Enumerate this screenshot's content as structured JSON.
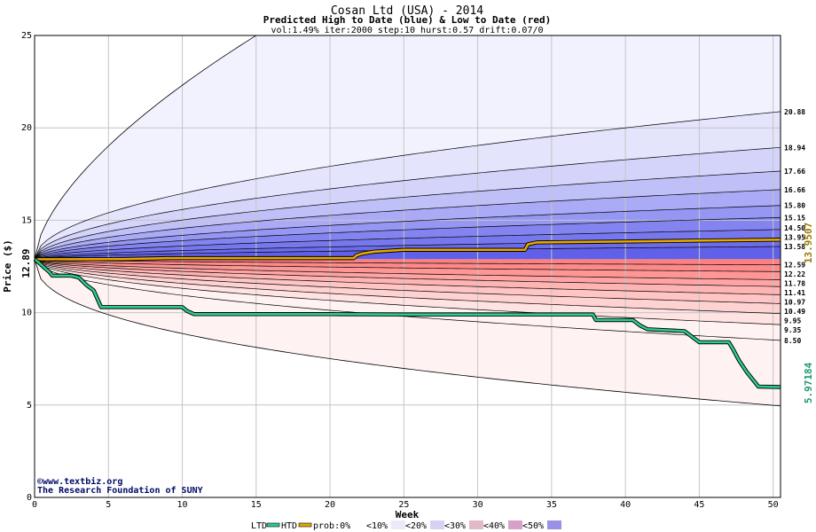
{
  "chart_data": {
    "type": "area",
    "title": "Cosan Ltd (USA) - 2014",
    "subtitle": "Predicted High to Date (blue) &  Low to Date (red)",
    "params": "vol:1.49% iter:2000 step:10 hurst:0.57 drift:0.07/0",
    "xlabel": "Week",
    "ylabel": "Price ($)",
    "xlim": [
      0,
      50.5
    ],
    "ylim": [
      0,
      25
    ],
    "x_ticks": [
      0,
      5,
      10,
      15,
      20,
      25,
      30,
      35,
      40,
      45,
      50
    ],
    "y_ticks": [
      0,
      5,
      10,
      15,
      20,
      25
    ],
    "grid": true,
    "start_price": 12.89,
    "start_price_label": "12.89",
    "upper_levels": [
      13.58,
      13.95,
      14.5,
      15.15,
      15.8,
      16.66,
      17.66,
      18.94,
      20.88
    ],
    "upper_labels": [
      "13.58",
      "13.95",
      "14.50",
      "15.15",
      "15.80",
      "16.66",
      "17.66",
      "18.94",
      "20.88"
    ],
    "lower_levels": [
      12.59,
      12.22,
      11.78,
      11.41,
      10.97,
      10.49,
      9.95,
      9.35,
      8.5
    ],
    "lower_labels": [
      "12.59",
      "12.22",
      "11.78",
      "11.41",
      "10.97",
      "10.49",
      "9.95",
      "9.35",
      "8.50"
    ],
    "outer_upper_week15": 25.0,
    "outer_lower_end": 4.95,
    "htd_series": {
      "name": "HTD",
      "color": "#e6a800",
      "final_value": 13.9507,
      "final_label": "13.9507",
      "points": [
        [
          0,
          12.89
        ],
        [
          2,
          12.89
        ],
        [
          6,
          12.9
        ],
        [
          9,
          12.95
        ],
        [
          12,
          12.95
        ],
        [
          18,
          12.95
        ],
        [
          21.6,
          12.95
        ],
        [
          21.8,
          13.1
        ],
        [
          22.2,
          13.2
        ],
        [
          23,
          13.3
        ],
        [
          25,
          13.4
        ],
        [
          28,
          13.4
        ],
        [
          33.2,
          13.4
        ],
        [
          33.4,
          13.7
        ],
        [
          34,
          13.8
        ],
        [
          40,
          13.85
        ],
        [
          45,
          13.9
        ],
        [
          50.5,
          13.9507
        ]
      ]
    },
    "ltd_series": {
      "name": "LTD",
      "color": "#2ccb8f",
      "final_value": 5.97184,
      "final_label": "5.97184",
      "points": [
        [
          0,
          12.89
        ],
        [
          0.3,
          12.7
        ],
        [
          0.7,
          12.4
        ],
        [
          1,
          12.2
        ],
        [
          1.2,
          12.0
        ],
        [
          2.5,
          12.0
        ],
        [
          3,
          11.9
        ],
        [
          3.5,
          11.5
        ],
        [
          4,
          11.2
        ],
        [
          4.5,
          10.3
        ],
        [
          10,
          10.3
        ],
        [
          10.3,
          10.1
        ],
        [
          10.8,
          9.92
        ],
        [
          20,
          9.92
        ],
        [
          25,
          9.9
        ],
        [
          37.8,
          9.9
        ],
        [
          38,
          9.6
        ],
        [
          40.5,
          9.6
        ],
        [
          41,
          9.3
        ],
        [
          41.5,
          9.1
        ],
        [
          44,
          9.0
        ],
        [
          44.5,
          8.7
        ],
        [
          45,
          8.4
        ],
        [
          47,
          8.4
        ],
        [
          47.3,
          8.0
        ],
        [
          47.7,
          7.4
        ],
        [
          48.2,
          6.8
        ],
        [
          48.6,
          6.4
        ],
        [
          49,
          6.0
        ],
        [
          50.5,
          5.97184
        ]
      ]
    },
    "band_colors": {
      "blue": [
        "#f2f2ff",
        "#e4e4fc",
        "#d4d4fa",
        "#c0c0f8",
        "#aaaaf6",
        "#9696f3",
        "#8484f0",
        "#7878ee",
        "#6c6ceb",
        "#6060e8"
      ],
      "red": [
        "#fff2f2",
        "#ffe2e2",
        "#ffd2d2",
        "#ffc4c4",
        "#ffb4b4",
        "#ffa4a4",
        "#ff9696",
        "#fd8a8a",
        "#fb8080"
      ]
    },
    "legend": {
      "ltd": "LTD",
      "htd": "HTD",
      "prob": "prob:0%",
      "buckets": [
        "<10%",
        "<20%",
        "<30%",
        "<40%",
        "<50%"
      ],
      "swatch_colors": [
        "#ffffff",
        "#eaeaf8",
        "#d8d2f2",
        "#e3b8c8",
        "#d8a0c8",
        "#9a90e6"
      ]
    }
  },
  "credits": {
    "line1": "www.textbiz.org",
    "line2": "The Research Foundation of SUNY",
    "symbol": "©"
  }
}
